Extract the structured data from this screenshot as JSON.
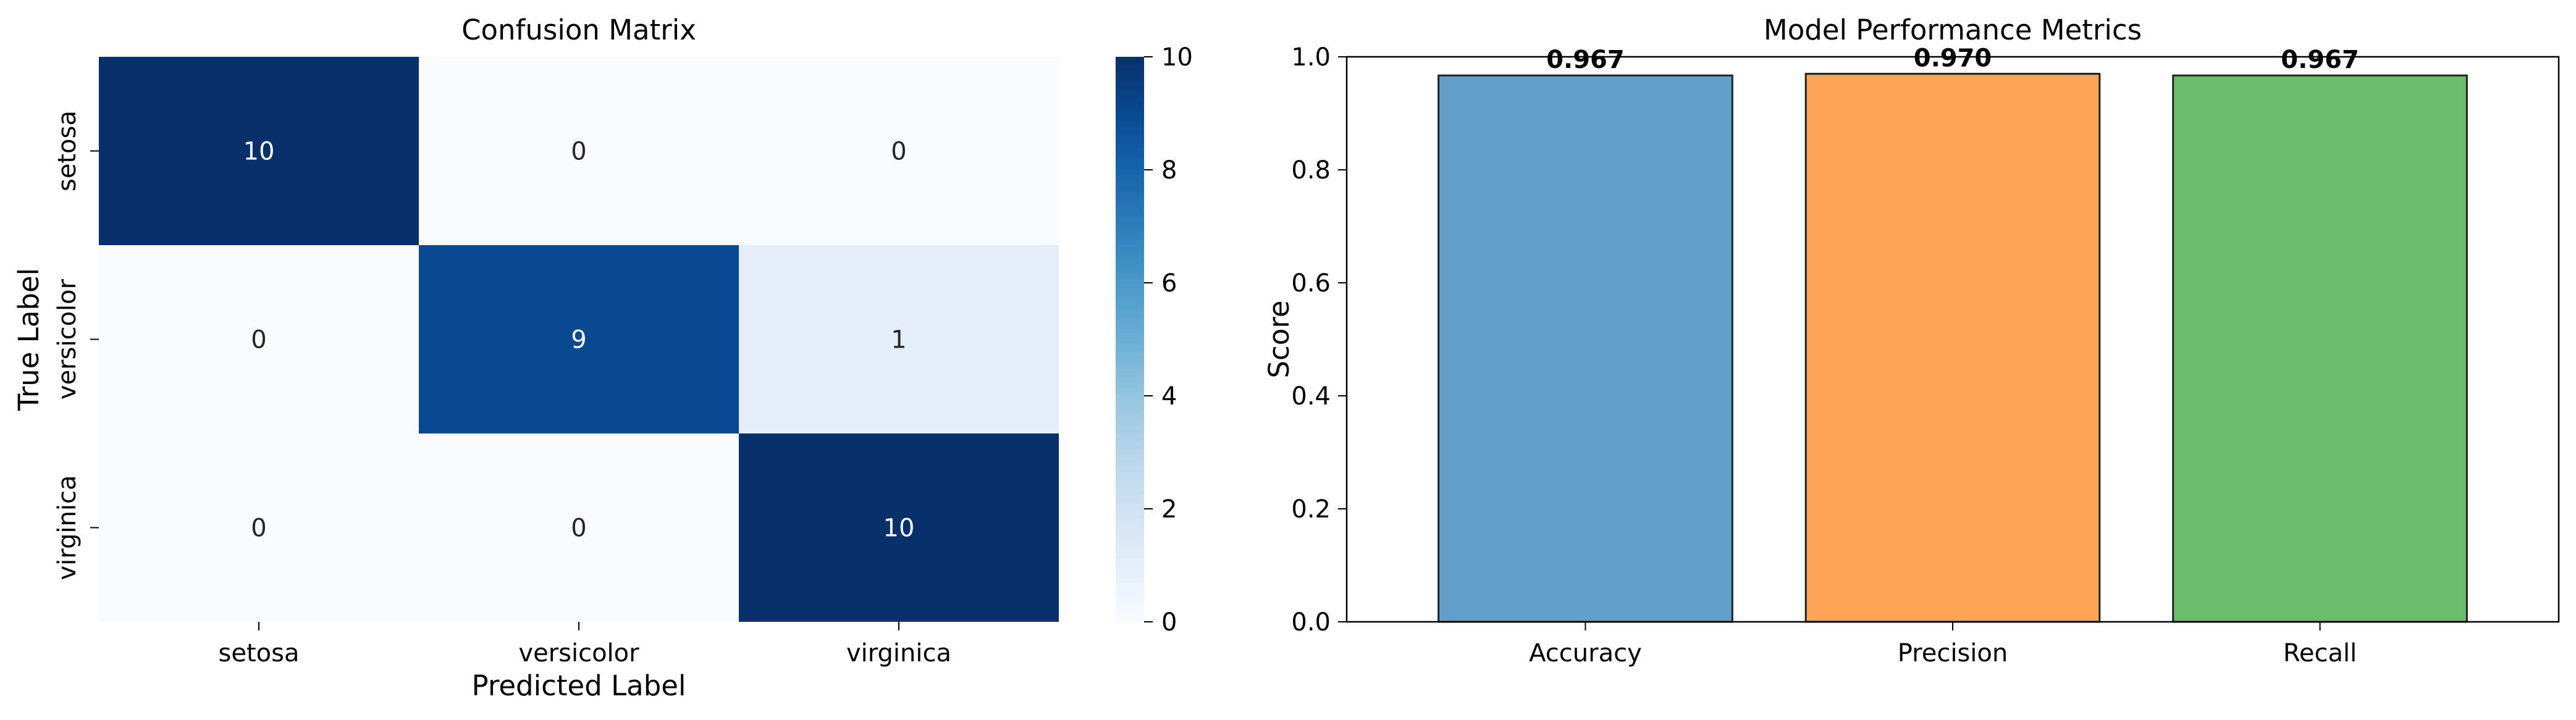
{
  "chart_data": [
    {
      "type": "heatmap",
      "title": "Confusion Matrix",
      "xlabel": "Predicted Label",
      "ylabel": "True Label",
      "x_categories": [
        "setosa",
        "versicolor",
        "virginica"
      ],
      "y_categories": [
        "setosa",
        "versicolor",
        "virginica"
      ],
      "values": [
        [
          10,
          0,
          0
        ],
        [
          0,
          9,
          1
        ],
        [
          0,
          0,
          10
        ]
      ],
      "colormap": "Blues",
      "colorbar": {
        "range": [
          0,
          10
        ],
        "ticks": [
          "0",
          "2",
          "4",
          "6",
          "8",
          "10"
        ]
      }
    },
    {
      "type": "bar",
      "title": "Model Performance Metrics",
      "xlabel": "",
      "ylabel": "Score",
      "categories": [
        "Accuracy",
        "Precision",
        "Recall"
      ],
      "values": [
        0.967,
        0.97,
        0.967
      ],
      "value_labels": [
        "0.967",
        "0.970",
        "0.967"
      ],
      "colors": [
        "#62a0ca",
        "#ffa556",
        "#6bbc6b"
      ],
      "edge_color": "#222222",
      "ylim": [
        0,
        1.0
      ],
      "yticks": [
        "0.0",
        "0.2",
        "0.4",
        "0.6",
        "0.8",
        "1.0"
      ],
      "grid": false
    }
  ]
}
